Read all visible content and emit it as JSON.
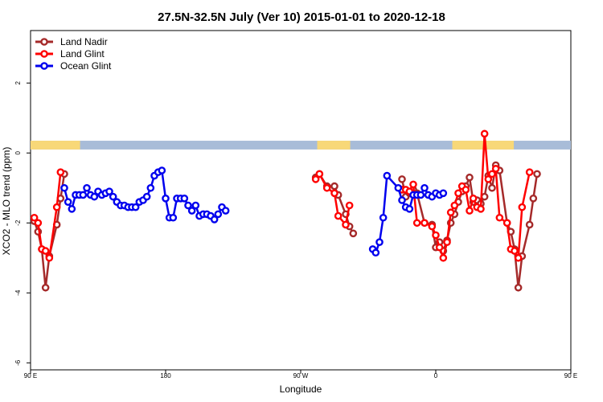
{
  "chart_data": {
    "type": "line",
    "title": "27.5N-32.5N July (Ver 10)   2015-01-01 to 2020-12-18",
    "xlabel": "Longitude",
    "ylabel": "XCO2 - MLO trend (ppm)",
    "xlim": [
      90,
      450
    ],
    "ylim": [
      -6.2,
      3.5
    ],
    "xticks": [
      {
        "value": 90,
        "label": "90 E"
      },
      {
        "value": 180,
        "label": "180"
      },
      {
        "value": 270,
        "label": "90 W"
      },
      {
        "value": 360,
        "label": "0"
      },
      {
        "value": 450,
        "label": "90 E"
      },
      {
        "value": 540,
        "label": "180"
      }
    ],
    "yticks": [
      {
        "value": 2,
        "label": "2"
      },
      {
        "value": 0,
        "label": "0"
      },
      {
        "value": -2,
        "label": "-2"
      },
      {
        "value": -4,
        "label": "-4"
      },
      {
        "value": -6,
        "label": "-6"
      }
    ],
    "xaxis_note": "longitude increases continuously past 360; 450 = 90 E, 540 = 180 (map repeated)",
    "legend_position": "top-left",
    "grid": false,
    "land_mask_band": {
      "y_range": [
        0.1,
        0.35
      ],
      "land_color": "#f8d878",
      "ocean_color": "#a8bcd8",
      "land_segments": [
        [
          90,
          123
        ],
        [
          281,
          303
        ],
        [
          371,
          412
        ],
        [
          458,
          490
        ],
        [
          508,
          541
        ]
      ]
    },
    "series": [
      {
        "name": "Land Nadir",
        "color": "#a52a2a",
        "points": [
          [
            92.5,
            -1.95
          ],
          [
            95,
            -2.25
          ],
          [
            97.5,
            -2.75
          ],
          [
            100,
            -3.85
          ],
          [
            102.5,
            -2.95
          ],
          [
            107.5,
            -2.05
          ],
          [
            110,
            -1.3
          ],
          [
            112.5,
            -0.6
          ],
          [
            280,
            -0.7
          ],
          [
            282.5,
            -0.6
          ],
          [
            287.5,
            -0.95
          ],
          [
            292.5,
            -0.95
          ],
          [
            295,
            -1.2
          ],
          [
            300,
            -1.75
          ],
          [
            302.5,
            -2.1
          ],
          [
            305,
            -2.3
          ],
          [
            337.5,
            -0.75
          ],
          [
            340,
            -1.25
          ],
          [
            342.5,
            -1.15
          ],
          [
            345,
            -1.05
          ],
          [
            347.5,
            -1.15
          ],
          [
            352.5,
            -2.0
          ],
          [
            357.5,
            -2.05
          ],
          [
            360,
            -2.7
          ],
          [
            362.5,
            -2.55
          ],
          [
            365,
            -2.8
          ],
          [
            367.5,
            -2.5
          ],
          [
            370,
            -2.0
          ],
          [
            372.5,
            -1.75
          ],
          [
            375,
            -1.4
          ],
          [
            377.5,
            -1.1
          ],
          [
            380,
            -0.95
          ],
          [
            382.5,
            -0.7
          ],
          [
            385,
            -1.4
          ],
          [
            387.5,
            -1.35
          ],
          [
            390,
            -1.45
          ],
          [
            392.5,
            -1.25
          ],
          [
            395,
            -0.65
          ],
          [
            397.5,
            -1.0
          ],
          [
            400,
            -0.35
          ],
          [
            402.5,
            -0.5
          ],
          [
            407.5,
            -2.0
          ],
          [
            410,
            -2.25
          ],
          [
            412.5,
            -2.75
          ],
          [
            415,
            -3.85
          ],
          [
            417.5,
            -2.95
          ],
          [
            422.5,
            -2.05
          ],
          [
            425,
            -1.3
          ],
          [
            427.5,
            -0.6
          ]
        ]
      },
      {
        "name": "Land Glint",
        "color": "#ff0000",
        "points": [
          [
            92.5,
            -1.85
          ],
          [
            95,
            -2.0
          ],
          [
            97.5,
            -2.75
          ],
          [
            100,
            -2.8
          ],
          [
            102.5,
            -3.0
          ],
          [
            107.5,
            -1.55
          ],
          [
            110,
            -0.55
          ],
          [
            280,
            -0.75
          ],
          [
            282.5,
            -0.6
          ],
          [
            287.5,
            -1.0
          ],
          [
            292.5,
            -1.15
          ],
          [
            295,
            -1.8
          ],
          [
            300,
            -2.05
          ],
          [
            302.5,
            -1.5
          ],
          [
            337.5,
            -1.05
          ],
          [
            340,
            -1.05
          ],
          [
            342.5,
            -1.1
          ],
          [
            345,
            -0.9
          ],
          [
            347.5,
            -2.0
          ],
          [
            352.5,
            -2.0
          ],
          [
            357.5,
            -2.1
          ],
          [
            360,
            -2.35
          ],
          [
            362.5,
            -2.7
          ],
          [
            365,
            -3.0
          ],
          [
            367.5,
            -2.55
          ],
          [
            370,
            -1.7
          ],
          [
            372.5,
            -1.5
          ],
          [
            375,
            -1.15
          ],
          [
            377.5,
            -0.95
          ],
          [
            380,
            -1.05
          ],
          [
            382.5,
            -1.65
          ],
          [
            385,
            -1.3
          ],
          [
            387.5,
            -1.55
          ],
          [
            390,
            -1.6
          ],
          [
            392.5,
            0.55
          ],
          [
            395,
            -0.75
          ],
          [
            397.5,
            -0.6
          ],
          [
            400,
            -0.45
          ],
          [
            402.5,
            -1.85
          ],
          [
            407.5,
            -2.0
          ],
          [
            410,
            -2.75
          ],
          [
            412.5,
            -2.8
          ],
          [
            415,
            -3.0
          ],
          [
            417.5,
            -1.55
          ],
          [
            422.5,
            -0.55
          ]
        ]
      },
      {
        "name": "Ocean Glint",
        "color": "#0000ee",
        "points": [
          [
            112.5,
            -1.0
          ],
          [
            115,
            -1.4
          ],
          [
            117.5,
            -1.6
          ],
          [
            120,
            -1.2
          ],
          [
            122.5,
            -1.2
          ],
          [
            125,
            -1.2
          ],
          [
            127.5,
            -1.0
          ],
          [
            130,
            -1.2
          ],
          [
            132.5,
            -1.25
          ],
          [
            135,
            -1.1
          ],
          [
            137.5,
            -1.2
          ],
          [
            140,
            -1.15
          ],
          [
            142.5,
            -1.1
          ],
          [
            145,
            -1.25
          ],
          [
            147.5,
            -1.4
          ],
          [
            150,
            -1.5
          ],
          [
            152.5,
            -1.5
          ],
          [
            155,
            -1.55
          ],
          [
            157.5,
            -1.55
          ],
          [
            160,
            -1.55
          ],
          [
            162.5,
            -1.4
          ],
          [
            165,
            -1.35
          ],
          [
            167.5,
            -1.25
          ],
          [
            170,
            -1.0
          ],
          [
            172.5,
            -0.65
          ],
          [
            175,
            -0.55
          ],
          [
            177.5,
            -0.5
          ],
          [
            180,
            -1.3
          ],
          [
            182.5,
            -1.85
          ],
          [
            185,
            -1.85
          ],
          [
            187.5,
            -1.3
          ],
          [
            190,
            -1.3
          ],
          [
            192.5,
            -1.3
          ],
          [
            195,
            -1.5
          ],
          [
            197.5,
            -1.65
          ],
          [
            200,
            -1.5
          ],
          [
            202.5,
            -1.8
          ],
          [
            205,
            -1.75
          ],
          [
            207.5,
            -1.75
          ],
          [
            210,
            -1.8
          ],
          [
            212.5,
            -1.9
          ],
          [
            215,
            -1.75
          ],
          [
            217.5,
            -1.55
          ],
          [
            220,
            -1.65
          ],
          [
            318,
            -2.75
          ],
          [
            320,
            -2.85
          ],
          [
            322.5,
            -2.55
          ],
          [
            325,
            -1.85
          ],
          [
            327.5,
            -0.65
          ],
          [
            335,
            -1.0
          ],
          [
            337.5,
            -1.35
          ],
          [
            340,
            -1.55
          ],
          [
            342.5,
            -1.6
          ],
          [
            345,
            -1.2
          ],
          [
            347.5,
            -1.2
          ],
          [
            350,
            -1.2
          ],
          [
            352.5,
            -1.0
          ],
          [
            355,
            -1.2
          ],
          [
            357.5,
            -1.25
          ],
          [
            360,
            -1.15
          ],
          [
            362.5,
            -1.2
          ],
          [
            365,
            -1.15
          ]
        ]
      }
    ]
  }
}
